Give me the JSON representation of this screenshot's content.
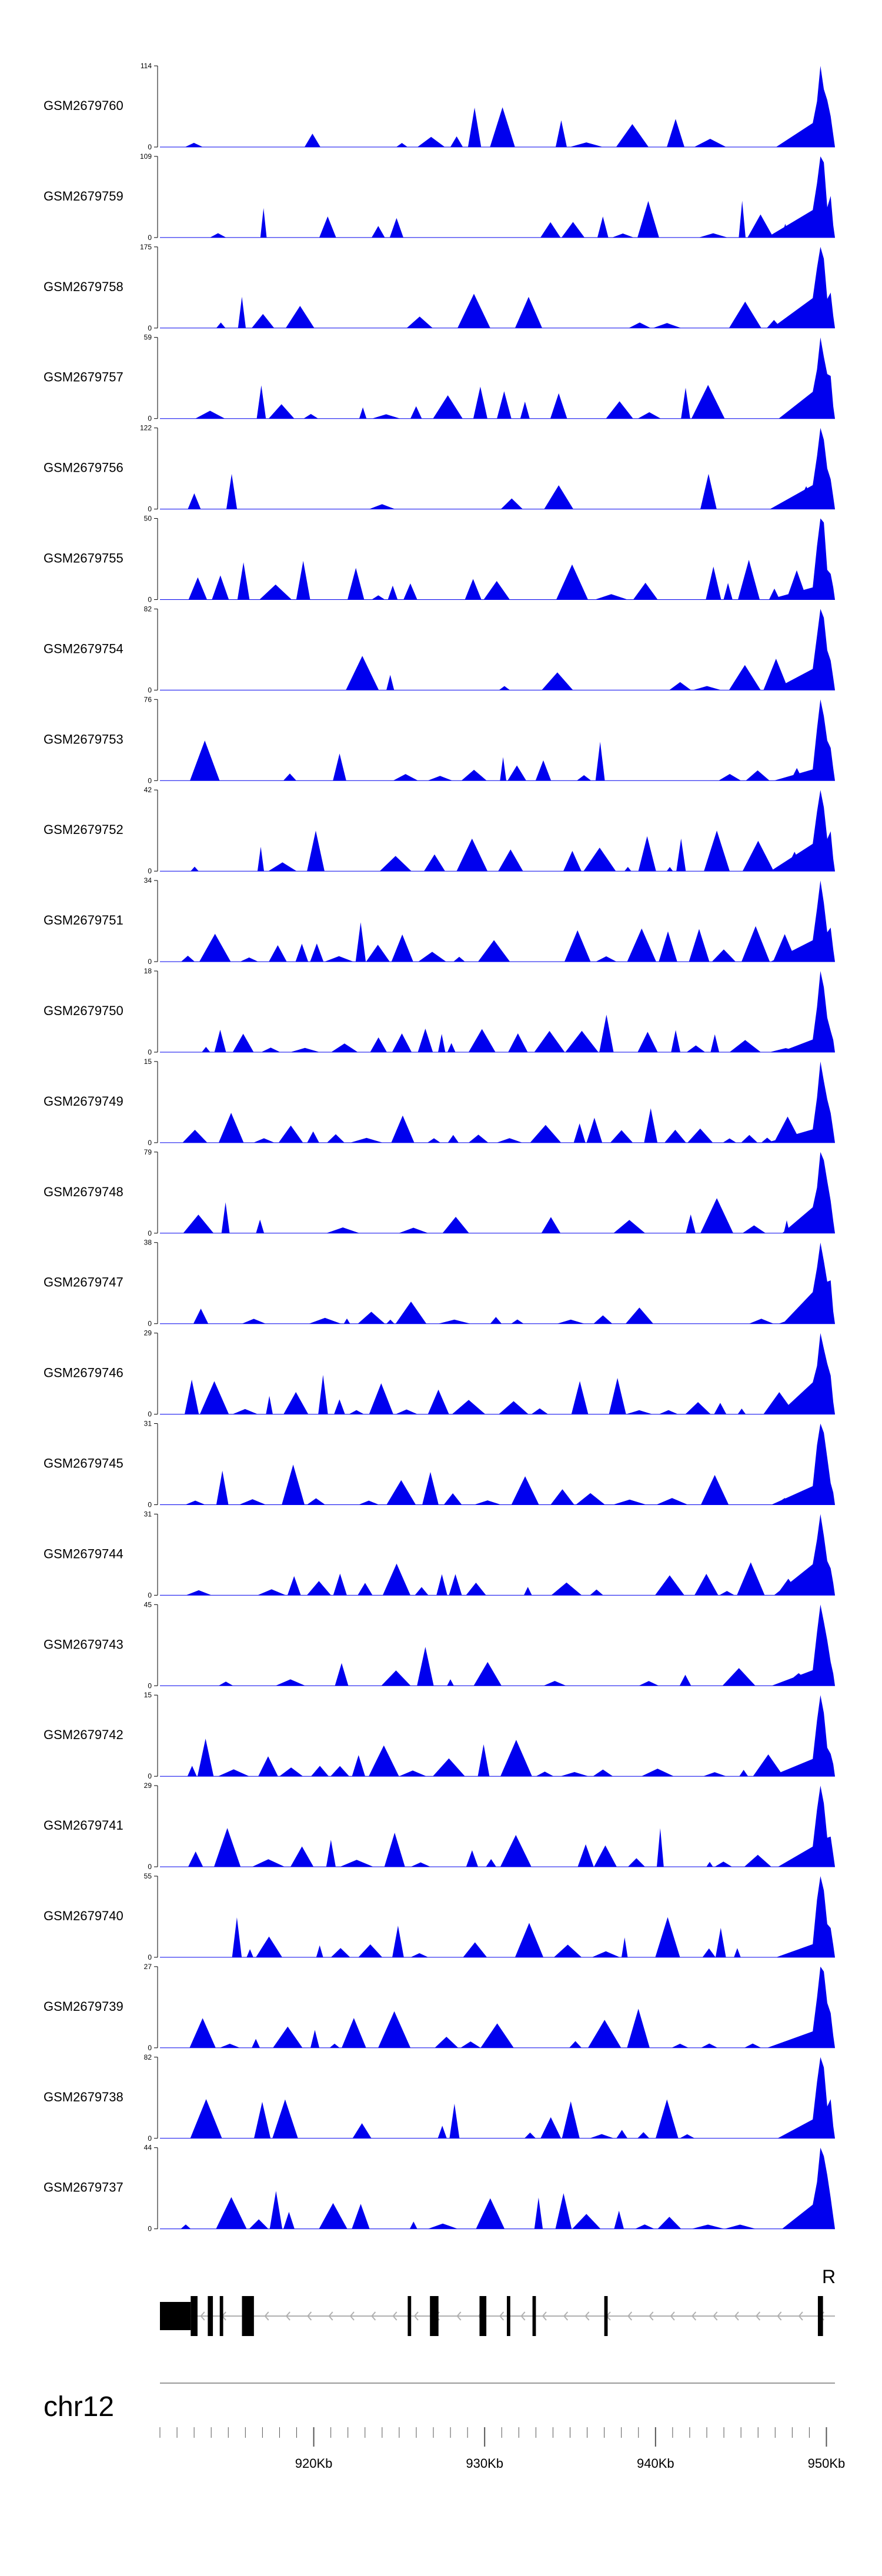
{
  "chart_data": {
    "type": "area",
    "chromosome": "chr12",
    "x_range_kb": [
      911,
      950.5
    ],
    "x_tick_labels": [
      {
        "kb": 920,
        "label": "920Kb"
      },
      {
        "kb": 930,
        "label": "930Kb"
      },
      {
        "kb": 940,
        "label": "940Kb"
      },
      {
        "kb": 950,
        "label": "950Kb"
      }
    ],
    "series_color": "#0000ee",
    "tracks": [
      {
        "name": "GSM2679760",
        "ymin": "0",
        "ymax": "114"
      },
      {
        "name": "GSM2679759",
        "ymin": "0",
        "ymax": "109"
      },
      {
        "name": "GSM2679758",
        "ymin": "0",
        "ymax": "175"
      },
      {
        "name": "GSM2679757",
        "ymin": "0",
        "ymax": "59"
      },
      {
        "name": "GSM2679756",
        "ymin": "0",
        "ymax": "122"
      },
      {
        "name": "GSM2679755",
        "ymin": "0",
        "ymax": "50"
      },
      {
        "name": "GSM2679754",
        "ymin": "0",
        "ymax": "82"
      },
      {
        "name": "GSM2679753",
        "ymin": "0",
        "ymax": "76"
      },
      {
        "name": "GSM2679752",
        "ymin": "0",
        "ymax": "42"
      },
      {
        "name": "GSM2679751",
        "ymin": "0",
        "ymax": "34"
      },
      {
        "name": "GSM2679750",
        "ymin": "0",
        "ymax": "18"
      },
      {
        "name": "GSM2679749",
        "ymin": "0",
        "ymax": "15"
      },
      {
        "name": "GSM2679748",
        "ymin": "0",
        "ymax": "79"
      },
      {
        "name": "GSM2679747",
        "ymin": "0",
        "ymax": "38"
      },
      {
        "name": "GSM2679746",
        "ymin": "0",
        "ymax": "29"
      },
      {
        "name": "GSM2679745",
        "ymin": "0",
        "ymax": "31"
      },
      {
        "name": "GSM2679744",
        "ymin": "0",
        "ymax": "31"
      },
      {
        "name": "GSM2679743",
        "ymin": "0",
        "ymax": "45"
      },
      {
        "name": "GSM2679742",
        "ymin": "0",
        "ymax": "15"
      },
      {
        "name": "GSM2679741",
        "ymin": "0",
        "ymax": "29"
      },
      {
        "name": "GSM2679740",
        "ymin": "0",
        "ymax": "55"
      },
      {
        "name": "GSM2679739",
        "ymin": "0",
        "ymax": "27"
      },
      {
        "name": "GSM2679738",
        "ymin": "0",
        "ymax": "82"
      },
      {
        "name": "GSM2679737",
        "ymin": "0",
        "ymax": "44"
      }
    ],
    "gene_model": {
      "strand_label": "R",
      "strand": "-",
      "span_kb": [
        911,
        950.5
      ],
      "utr_kb": [
        911,
        912.8
      ],
      "exons_kb": [
        [
          912.8,
          913.2
        ],
        [
          913.8,
          914.1
        ],
        [
          914.5,
          914.7
        ],
        [
          915.8,
          916.5
        ],
        [
          925.5,
          925.7
        ],
        [
          926.8,
          927.3
        ],
        [
          929.7,
          930.1
        ],
        [
          931.3,
          931.5
        ],
        [
          932.8,
          933.0
        ],
        [
          937.0,
          937.2
        ],
        [
          949.5,
          949.8
        ]
      ]
    }
  }
}
